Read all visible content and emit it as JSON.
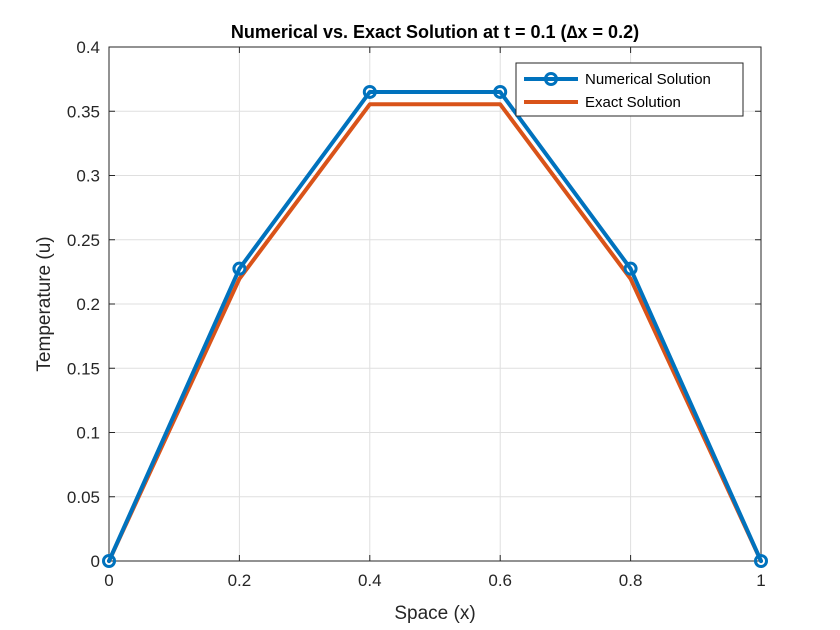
{
  "chart_data": {
    "type": "line",
    "title": "Numerical vs. Exact Solution at t = 0.1 (∆x = 0.2)",
    "xlabel": "Space (x)",
    "ylabel": "Temperature (u)",
    "xlim": [
      0,
      1
    ],
    "ylim": [
      0,
      0.4
    ],
    "xticks": [
      0,
      0.2,
      0.4,
      0.6,
      0.8,
      1
    ],
    "yticks": [
      0,
      0.05,
      0.1,
      0.15,
      0.2,
      0.25,
      0.3,
      0.35,
      0.4
    ],
    "xtick_labels": [
      "0",
      "0.2",
      "0.4",
      "0.6",
      "0.8",
      "1"
    ],
    "ytick_labels": [
      "0",
      "0.05",
      "0.1",
      "0.15",
      "0.2",
      "0.25",
      "0.3",
      "0.35",
      "0.4"
    ],
    "grid": true,
    "legend_position": "top-right",
    "series": [
      {
        "name": "Numerical Solution",
        "color": "#0072BD",
        "marker": "circle",
        "x": [
          0,
          0.2,
          0.4,
          0.6,
          0.8,
          1
        ],
        "y": [
          0,
          0.2275,
          0.365,
          0.365,
          0.2275,
          0
        ]
      },
      {
        "name": "Exact Solution",
        "color": "#D95319",
        "marker": "none",
        "x": [
          0,
          0.2,
          0.4,
          0.6,
          0.8,
          1
        ],
        "y": [
          0,
          0.2196,
          0.3554,
          0.3554,
          0.2196,
          0
        ]
      }
    ]
  }
}
